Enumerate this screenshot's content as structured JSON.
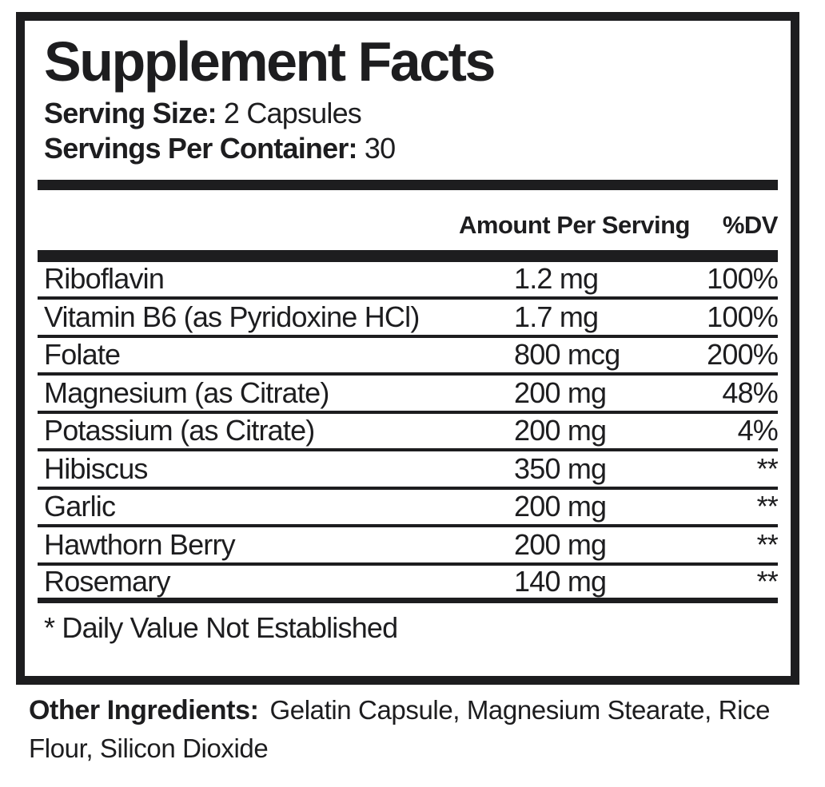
{
  "colors": {
    "ink": "#1d1d1f",
    "background": "#ffffff"
  },
  "panel": {
    "title": "Supplement Facts",
    "serving_size_label": "Serving Size:",
    "serving_size_value": "2 Capsules",
    "servings_per_container_label": "Servings Per Container:",
    "servings_per_container_value": "30",
    "columns": {
      "amount": "Amount Per Serving",
      "dv": "%DV"
    },
    "rows": [
      {
        "name": "Riboflavin",
        "amount": "1.2 mg",
        "dv": "100%"
      },
      {
        "name": "Vitamin B6 (as Pyridoxine HCl)",
        "amount": "1.7 mg",
        "dv": "100%"
      },
      {
        "name": "Folate",
        "amount": "800 mcg",
        "dv": "200%"
      },
      {
        "name": "Magnesium (as Citrate)",
        "amount": "200 mg",
        "dv": "48%"
      },
      {
        "name": "Potassium (as Citrate)",
        "amount": "200 mg",
        "dv": "4%"
      },
      {
        "name": "Hibiscus",
        "amount": "350 mg",
        "dv": "**"
      },
      {
        "name": "Garlic",
        "amount": "200 mg",
        "dv": "**"
      },
      {
        "name": "Hawthorn Berry",
        "amount": "200 mg",
        "dv": "**"
      },
      {
        "name": "Rosemary",
        "amount": "140 mg",
        "dv": "**"
      }
    ],
    "footnote": "* Daily Value Not Established"
  },
  "other_ingredients": {
    "label": "Other Ingredients:",
    "value": "Gelatin Capsule, Magnesium Stearate, Rice Flour, Silicon Dioxide"
  }
}
